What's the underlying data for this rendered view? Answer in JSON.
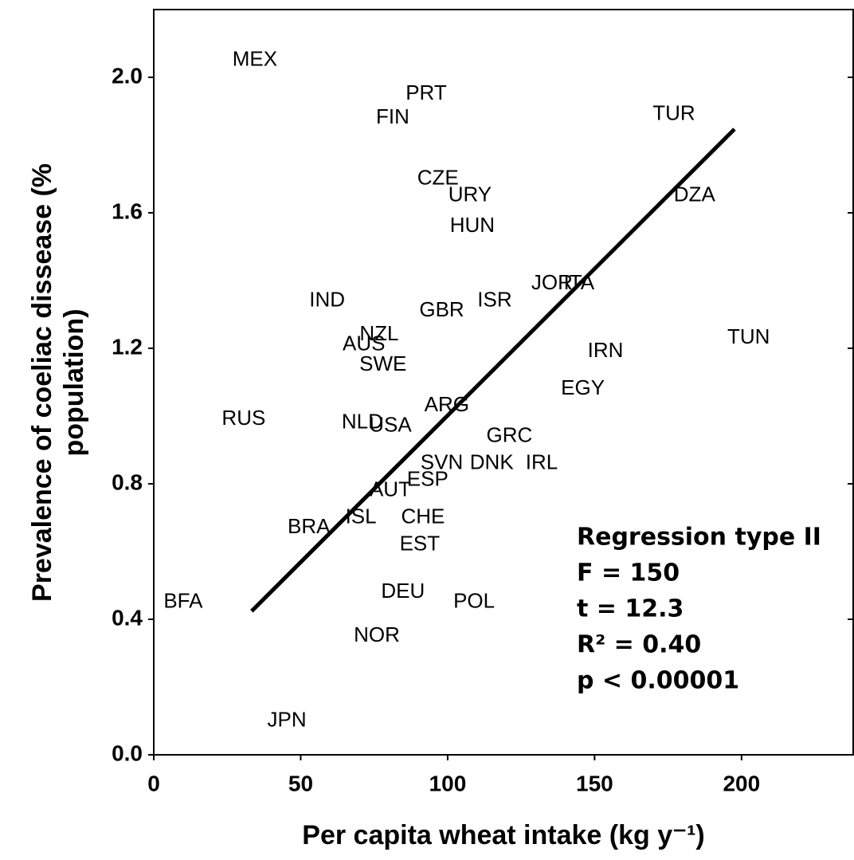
{
  "chart_data": {
    "type": "scatter",
    "x_label": "Per capita wheat intake (kg y⁻¹)",
    "y_label": [
      "Prevalence of coeliac dissease (%",
      "population)"
    ],
    "xlim": [
      0,
      238
    ],
    "ylim": [
      0,
      2.2
    ],
    "xticks": [
      0,
      50,
      100,
      150,
      200
    ],
    "yticks": [
      {
        "value": 0,
        "label": "0.0"
      },
      0.4,
      0.8,
      1.2,
      1.6,
      {
        "value": 2,
        "label": "2.0"
      }
    ],
    "labels": [
      "MEX",
      "PRT",
      "FIN",
      "TUR",
      "CZE",
      "URY",
      "DZA",
      "HUN",
      "IND",
      "JOR",
      "ITA",
      "ISR",
      "GBR",
      "NZL",
      "AUS",
      "SWE",
      "TUN",
      "IRN",
      "EGY",
      "ARG",
      "RUS",
      "NLD",
      "USA",
      "GRC",
      "SVN",
      "DNK",
      "IRL",
      "ESP",
      "AUT",
      "ISL",
      "CHE",
      "BRA",
      "EST",
      "DEU",
      "POL",
      "BFA",
      "NOR",
      "JPN"
    ],
    "x": [
      34.4,
      92.7,
      81.3,
      177,
      96.7,
      107.6,
      184,
      108.4,
      59,
      135.5,
      144.7,
      116,
      98,
      76.7,
      71.5,
      78,
      202.4,
      153.7,
      146,
      99.7,
      30.6,
      71,
      80.5,
      121,
      98,
      115,
      132,
      93.2,
      80.5,
      70.5,
      91.6,
      52.8,
      90.5,
      84.8,
      109,
      10,
      75.9,
      45.3
    ],
    "y": [
      2.05,
      1.95,
      1.88,
      1.89,
      1.7,
      1.65,
      1.65,
      1.56,
      1.34,
      1.39,
      1.39,
      1.34,
      1.31,
      1.24,
      1.21,
      1.15,
      1.23,
      1.19,
      1.08,
      1.03,
      0.99,
      0.98,
      0.97,
      0.94,
      0.86,
      0.86,
      0.86,
      0.81,
      0.78,
      0.7,
      0.7,
      0.67,
      0.62,
      0.48,
      0.45,
      0.45,
      0.35,
      0.1
    ],
    "regression_line": {
      "x": [
        33.3,
        197.6
      ],
      "y": [
        0.424,
        1.847
      ]
    },
    "annotations": [
      "Regression type II",
      "F = 150",
      "t = 12.3",
      "R² = 0.40",
      "p < 0.00001"
    ]
  }
}
